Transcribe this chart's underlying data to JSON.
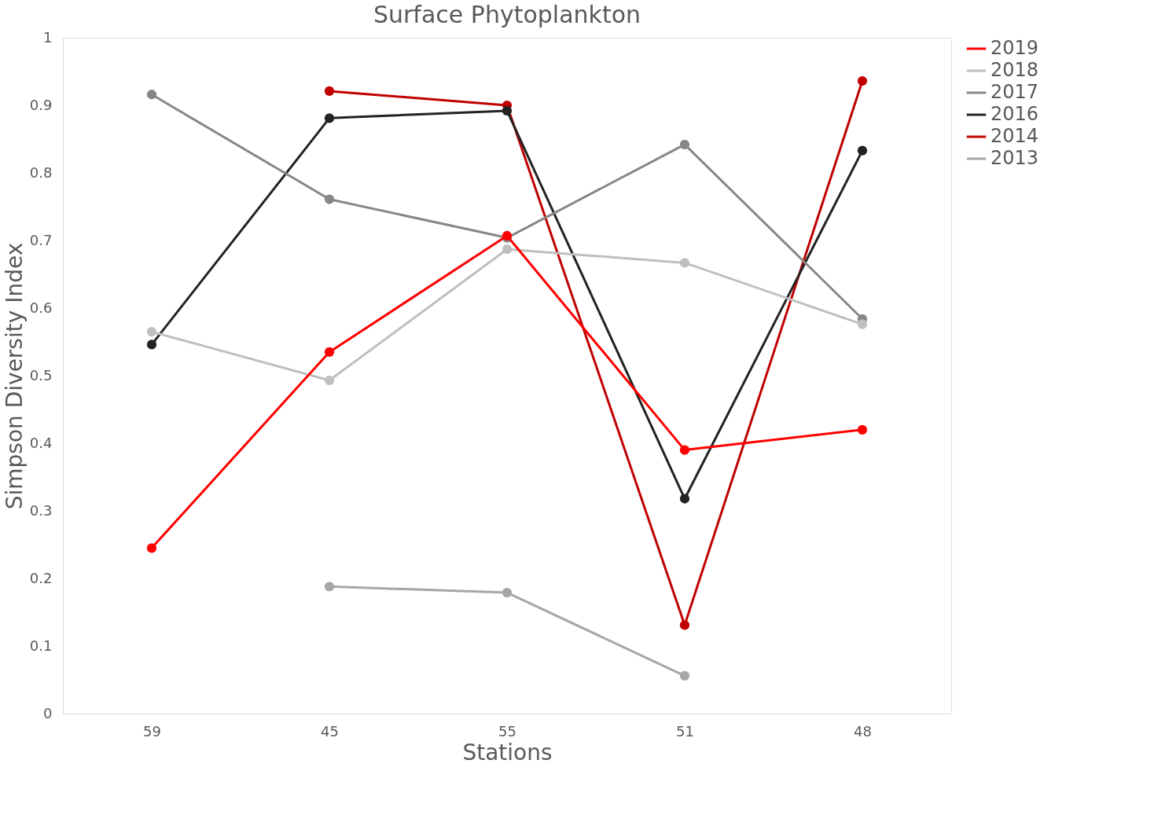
{
  "chart_data": {
    "type": "line",
    "title": "Surface Phytoplankton",
    "xlabel": "Stations",
    "ylabel": "Simpson Diversity Index",
    "categories": [
      "59",
      "45",
      "55",
      "51",
      "48"
    ],
    "series": [
      {
        "name": "2019",
        "color": "#ff0000",
        "values": [
          0.245,
          0.535,
          0.707,
          0.39,
          0.42
        ]
      },
      {
        "name": "2018",
        "color": "#bfbfbf",
        "values": [
          0.565,
          0.493,
          0.687,
          0.667,
          0.576
        ]
      },
      {
        "name": "2017",
        "color": "#878787",
        "values": [
          0.916,
          0.761,
          0.704,
          0.842,
          0.584
        ]
      },
      {
        "name": "2016",
        "color": "#222222",
        "values": [
          0.546,
          0.881,
          0.892,
          0.318,
          0.833
        ]
      },
      {
        "name": "2014",
        "color": "#c00000",
        "values": [
          null,
          0.921,
          0.9,
          0.131,
          0.936
        ]
      },
      {
        "name": "2013",
        "color": "#a6a6a6",
        "values": [
          null,
          0.188,
          0.179,
          0.056,
          null
        ]
      }
    ],
    "ylim": [
      0,
      1
    ],
    "yticks": [
      0,
      0.1,
      0.2,
      0.3,
      0.4,
      0.5,
      0.6,
      0.7,
      0.8,
      0.9,
      1
    ],
    "grid": false,
    "legend": "right",
    "marker": "circle",
    "line_style": "solid"
  }
}
